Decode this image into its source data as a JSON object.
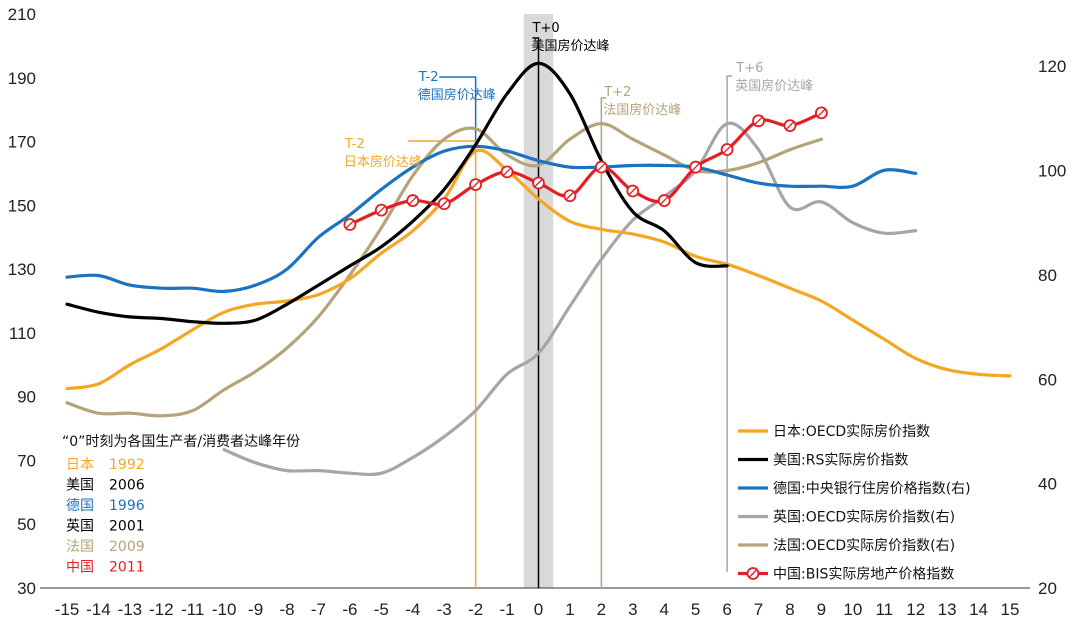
{
  "chart_data": {
    "type": "line",
    "x": [
      -15,
      -14,
      -13,
      -12,
      -11,
      -10,
      -9,
      -8,
      -7,
      -6,
      -5,
      -4,
      -3,
      -2,
      -1,
      0,
      1,
      2,
      3,
      4,
      5,
      6,
      7,
      8,
      9,
      10,
      11,
      12,
      13,
      14,
      15
    ],
    "x_tick_labels": [
      "-15",
      "-14",
      "-13",
      "-12",
      "-11",
      "-10",
      "-9",
      "-8",
      "-7",
      "-6",
      "-5",
      "-4",
      "-3",
      "-2",
      "-1",
      "0",
      "1",
      "2",
      "3",
      "4",
      "5",
      "6",
      "7",
      "8",
      "9",
      "10",
      "11",
      "12",
      "13",
      "14",
      "15"
    ],
    "y_left": {
      "ylim": [
        30,
        210
      ],
      "ticks": [
        "30",
        "50",
        "70",
        "90",
        "110",
        "130",
        "150",
        "170",
        "190",
        "210"
      ]
    },
    "y_right": {
      "ylim": [
        20,
        130
      ],
      "ticks": [
        "20",
        "40",
        "60",
        "80",
        "100",
        "120"
      ]
    },
    "shaded_band": [
      -0.5,
      0.5
    ],
    "series": [
      {
        "name": "日本:OECD实际房价指数",
        "axis": "left",
        "color": "#F5A623",
        "markers": false,
        "points": [
          [
            -15,
            92.5
          ],
          [
            -14,
            94
          ],
          [
            -13,
            100
          ],
          [
            -12,
            105
          ],
          [
            -11,
            111
          ],
          [
            -10,
            116.5
          ],
          [
            -9,
            119
          ],
          [
            -8,
            120
          ],
          [
            -7,
            122
          ],
          [
            -6,
            127
          ],
          [
            -5,
            135
          ],
          [
            -4,
            142
          ],
          [
            -3,
            152
          ],
          [
            -2,
            167
          ],
          [
            -1,
            161
          ],
          [
            0,
            152
          ],
          [
            1,
            145
          ],
          [
            2,
            142.5
          ],
          [
            3,
            141
          ],
          [
            4,
            138.5
          ],
          [
            5,
            134
          ],
          [
            6,
            131.5
          ],
          [
            7,
            128
          ],
          [
            8,
            124
          ],
          [
            9,
            120
          ],
          [
            10,
            114
          ],
          [
            11,
            108
          ],
          [
            12,
            102
          ],
          [
            13,
            98.5
          ],
          [
            14,
            97
          ],
          [
            15,
            96.5
          ]
        ]
      },
      {
        "name": "美国:RS实际房价指数",
        "axis": "left",
        "color": "#000000",
        "markers": false,
        "points": [
          [
            -15,
            119
          ],
          [
            -14,
            116.5
          ],
          [
            -13,
            115
          ],
          [
            -12,
            114.5
          ],
          [
            -11,
            113.5
          ],
          [
            -10,
            113
          ],
          [
            -9,
            114
          ],
          [
            -8,
            119
          ],
          [
            -7,
            125
          ],
          [
            -6,
            131
          ],
          [
            -5,
            137
          ],
          [
            -4,
            145
          ],
          [
            -3,
            155
          ],
          [
            -2,
            169
          ],
          [
            -1,
            185
          ],
          [
            0,
            194.5
          ],
          [
            1,
            185
          ],
          [
            2,
            164
          ],
          [
            3,
            148
          ],
          [
            4,
            142
          ],
          [
            5,
            132
          ],
          [
            6,
            131
          ]
        ]
      },
      {
        "name": "德国:中央银行住房价格指数(右)",
        "axis": "left",
        "color": "#1A73C1",
        "markers": false,
        "points": [
          [
            -15,
            127.5
          ],
          [
            -14,
            128
          ],
          [
            -13,
            125
          ],
          [
            -12,
            124
          ],
          [
            -11,
            124
          ],
          [
            -10,
            123
          ],
          [
            -9,
            125
          ],
          [
            -8,
            130
          ],
          [
            -7,
            140
          ],
          [
            -6,
            147
          ],
          [
            -5,
            155
          ],
          [
            -4,
            162
          ],
          [
            -3,
            167
          ],
          [
            -2,
            168.5
          ],
          [
            -1,
            167
          ],
          [
            0,
            164
          ],
          [
            1,
            162
          ],
          [
            2,
            162
          ],
          [
            3,
            162.5
          ],
          [
            4,
            162.5
          ],
          [
            5,
            162
          ],
          [
            6,
            159.5
          ],
          [
            7,
            157
          ],
          [
            8,
            156
          ],
          [
            9,
            156
          ],
          [
            10,
            156
          ],
          [
            11,
            161
          ],
          [
            12,
            160
          ]
        ]
      },
      {
        "name": "英国:OECD实际房价指数(右)",
        "axis": "right",
        "color": "#A6A6A6",
        "markers": false,
        "points": [
          [
            -10,
            46.5
          ],
          [
            -9,
            44
          ],
          [
            -8,
            42.5
          ],
          [
            -7,
            42.5
          ],
          [
            -6,
            42
          ],
          [
            -5,
            42
          ],
          [
            -4,
            45
          ],
          [
            -3,
            49
          ],
          [
            -2,
            54
          ],
          [
            -1,
            61
          ],
          [
            0,
            65
          ],
          [
            1,
            74
          ],
          [
            2,
            83
          ],
          [
            3,
            90.5
          ],
          [
            4,
            95
          ],
          [
            5,
            100
          ],
          [
            6,
            109
          ],
          [
            7,
            104
          ],
          [
            8,
            93
          ],
          [
            9,
            94
          ],
          [
            10,
            90
          ],
          [
            11,
            88
          ],
          [
            12,
            88.5
          ]
        ]
      },
      {
        "name": "法国:OECD实际房价指数(右)",
        "axis": "right",
        "color": "#B5A47A",
        "markers": false,
        "points": [
          [
            -15,
            55.5
          ],
          [
            -14,
            53.5
          ],
          [
            -13,
            53.5
          ],
          [
            -12,
            53
          ],
          [
            -11,
            54
          ],
          [
            -10,
            58
          ],
          [
            -9,
            61.5
          ],
          [
            -8,
            66
          ],
          [
            -7,
            72
          ],
          [
            -6,
            80
          ],
          [
            -5,
            89
          ],
          [
            -4,
            99
          ],
          [
            -3,
            106
          ],
          [
            -2,
            108
          ],
          [
            -1,
            103
          ],
          [
            0,
            101
          ],
          [
            1,
            106
          ],
          [
            2,
            109
          ],
          [
            3,
            106
          ],
          [
            4,
            103
          ],
          [
            5,
            100
          ],
          [
            6,
            100
          ],
          [
            7,
            101.5
          ],
          [
            8,
            104
          ],
          [
            9,
            106
          ]
        ]
      },
      {
        "name": "中国:BIS实际房地产价格指数",
        "axis": "left",
        "color": "#E31E24",
        "markers": true,
        "points": [
          [
            -6,
            144
          ],
          [
            -5,
            148.5
          ],
          [
            -4,
            151.5
          ],
          [
            -3,
            150.5
          ],
          [
            -2,
            156.5
          ],
          [
            -1,
            160.5
          ],
          [
            0,
            157
          ],
          [
            1,
            153
          ],
          [
            2,
            162
          ],
          [
            3,
            154.5
          ],
          [
            4,
            151.5
          ],
          [
            5,
            162
          ],
          [
            6,
            167.5
          ],
          [
            7,
            176.5
          ],
          [
            8,
            175
          ],
          [
            9,
            179
          ]
        ]
      }
    ],
    "annotations": [
      {
        "x": 0,
        "lines": [
          "T+0",
          "美国房价达峰"
        ],
        "color": "#000000"
      },
      {
        "x": -2,
        "lines": [
          "T-2",
          "德国房价达峰"
        ],
        "color": "#1A73C1"
      },
      {
        "x": -2,
        "lines": [
          "T-2",
          "日本房价达峰"
        ],
        "color": "#F5A623"
      },
      {
        "x": 2,
        "lines": [
          "T+2",
          "法国房价达峰"
        ],
        "color": "#B5A47A"
      },
      {
        "x": 6,
        "lines": [
          "T+6",
          "英国房价达峰"
        ],
        "color": "#A6A6A6"
      }
    ],
    "note": {
      "title": "“0”时刻为各国生产者/消费者达峰年份",
      "rows": [
        {
          "country": "日本",
          "year": "1992",
          "color": "#F5A623"
        },
        {
          "country": "美国",
          "year": "2006",
          "color": "#000000"
        },
        {
          "country": "德国",
          "year": "1996",
          "color": "#1A73C1"
        },
        {
          "country": "英国",
          "year": "2001",
          "color": "#000000"
        },
        {
          "country": "法国",
          "year": "2009",
          "color": "#B5A47A"
        },
        {
          "country": "中国",
          "year": "2011",
          "color": "#E31E24"
        }
      ]
    },
    "legend_position": "bottom-right"
  }
}
